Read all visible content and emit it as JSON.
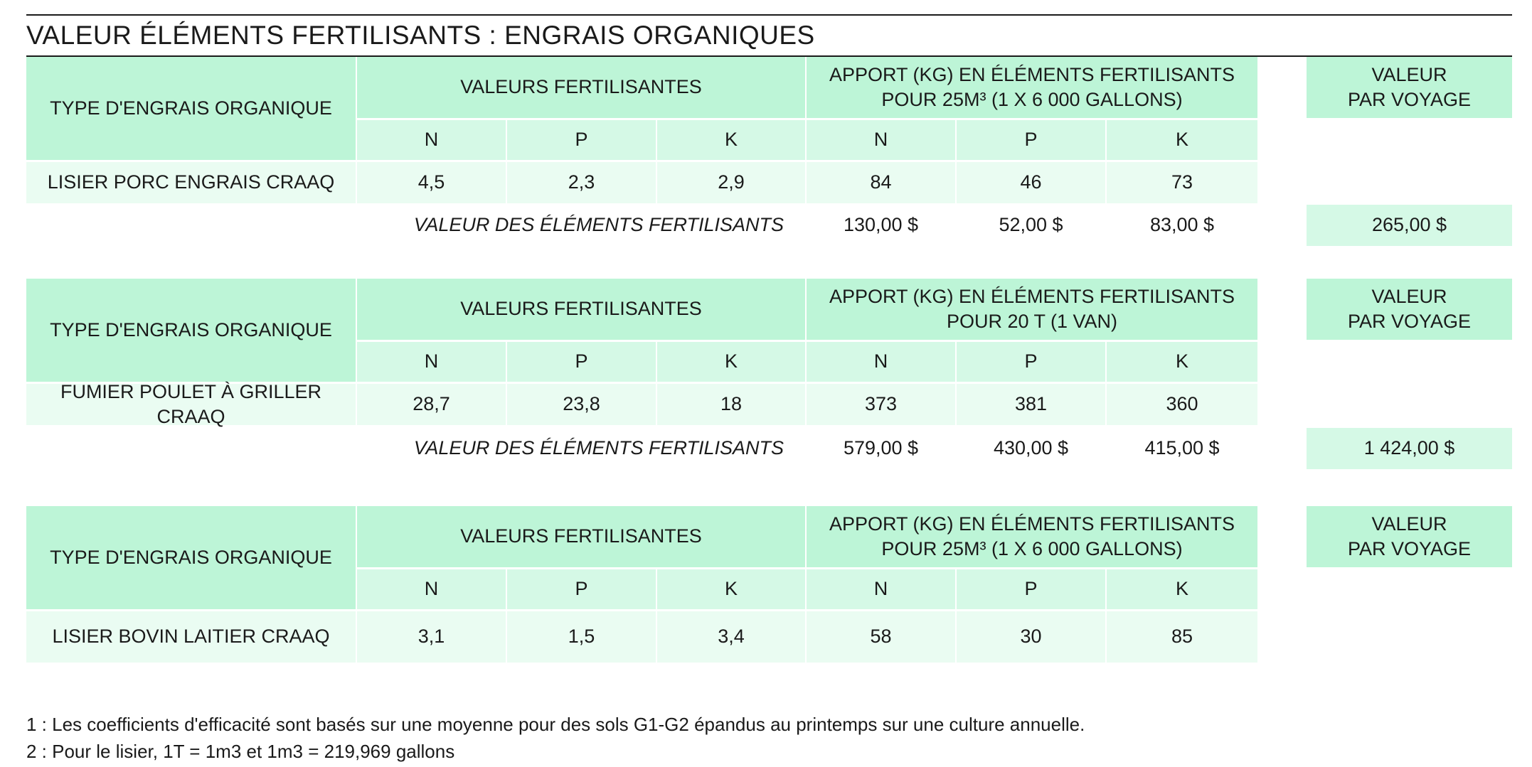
{
  "title": "VALEUR ÉLÉMENTS FERTILISANTS : ENGRAIS ORGANIQUES",
  "tables": [
    {
      "type_header": "TYPE D'ENGRAIS ORGANIQUE",
      "values_header": "VALEURS FERTILISANTES",
      "apport_header_line1": "APPORT (KG) EN ÉLÉMENTS FERTILISANTS",
      "apport_header_line2": "POUR 25M³ (1 X 6 000 GALLONS)",
      "voyage_header_line1": "VALEUR",
      "voyage_header_line2": "PAR VOYAGE",
      "sub_headers": [
        "N",
        "P",
        "K",
        "N",
        "P",
        "K"
      ],
      "row_label": "LISIER PORC ENGRAIS CRAAQ",
      "row_values": [
        "4,5",
        "2,3",
        "2,9",
        "84",
        "46",
        "73"
      ],
      "total_label": "VALEUR DES ÉLÉMENTS FERTILISANTS",
      "total_values": [
        "130,00 $",
        "52,00 $",
        "83,00 $"
      ],
      "voyage_value": "265,00 $"
    },
    {
      "type_header": "TYPE D'ENGRAIS ORGANIQUE",
      "values_header": "VALEURS FERTILISANTES",
      "apport_header_line1": "APPORT (KG) EN ÉLÉMENTS FERTILISANTS",
      "apport_header_line2": "POUR 20 T (1 VAN)",
      "voyage_header_line1": "VALEUR",
      "voyage_header_line2": "PAR VOYAGE",
      "sub_headers": [
        "N",
        "P",
        "K",
        "N",
        "P",
        "K"
      ],
      "row_label": "FUMIER POULET À GRILLER CRAAQ",
      "row_values": [
        "28,7",
        "23,8",
        "18",
        "373",
        "381",
        "360"
      ],
      "total_label": "VALEUR DES ÉLÉMENTS FERTILISANTS",
      "total_values": [
        "579,00 $",
        "430,00 $",
        "415,00 $"
      ],
      "voyage_value": "1 424,00 $"
    },
    {
      "type_header": "TYPE D'ENGRAIS ORGANIQUE",
      "values_header": "VALEURS FERTILISANTES",
      "apport_header_line1": "APPORT (KG) EN ÉLÉMENTS FERTILISANTS",
      "apport_header_line2": "POUR 25M³ (1 X 6 000 GALLONS)",
      "voyage_header_line1": "VALEUR",
      "voyage_header_line2": "PAR VOYAGE",
      "sub_headers": [
        "N",
        "P",
        "K",
        "N",
        "P",
        "K"
      ],
      "row_label": "LISIER BOVIN LAITIER CRAAQ",
      "row_values": [
        "3,1",
        "1,5",
        "3,4",
        "58",
        "30",
        "85"
      ]
    }
  ],
  "footnotes": [
    "1 : Les coefficients d'efficacité sont basés sur une moyenne pour des sols G1-G2 épandus au printemps sur une culture annuelle.",
    "2 : Pour le lisier, 1T = 1m3 et 1m3 = 219,969 gallons"
  ],
  "colors": {
    "header_dark": "#bdf5d7",
    "header_light": "#d5f9e6",
    "data_row": "#eafcf2"
  }
}
